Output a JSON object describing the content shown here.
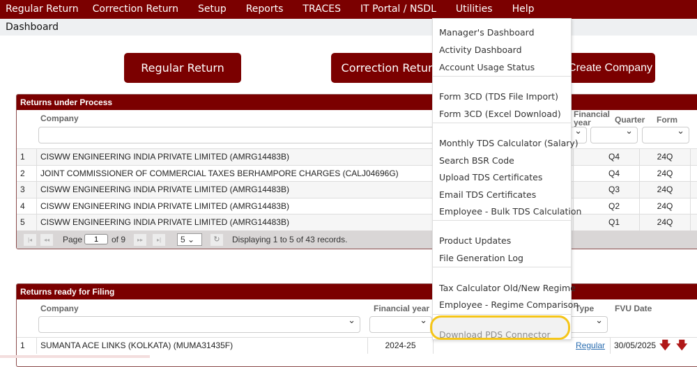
{
  "menubar": [
    "Regular Return",
    "Correction Return",
    "Setup",
    "Reports",
    "TRACES",
    "IT Portal / NSDL",
    "Utilities",
    "Help"
  ],
  "breadcrumb": "Dashboard",
  "buttons": {
    "regular": "Regular Return",
    "correction": "Correction Return",
    "create": "Create Company"
  },
  "process": {
    "title": "Returns under Process",
    "headers": {
      "company": "Company",
      "year": "Financial year",
      "quarter": "Quarter",
      "form": "Form"
    },
    "rows": [
      {
        "n": "1",
        "company": "CISWW ENGINEERING INDIA PRIVATE LIMITED (AMRG14483B)",
        "quarter": "Q4",
        "form": "24Q"
      },
      {
        "n": "2",
        "company": "JOINT COMMISSIONER OF COMMERCIAL TAXES BERHAMPORE CHARGES (CALJ04696G)",
        "quarter": "Q4",
        "form": "24Q"
      },
      {
        "n": "3",
        "company": "CISWW ENGINEERING INDIA PRIVATE LIMITED (AMRG14483B)",
        "quarter": "Q3",
        "form": "24Q"
      },
      {
        "n": "4",
        "company": "CISWW ENGINEERING INDIA PRIVATE LIMITED (AMRG14483B)",
        "quarter": "Q2",
        "form": "24Q"
      },
      {
        "n": "5",
        "company": "CISWW ENGINEERING INDIA PRIVATE LIMITED (AMRG14483B)",
        "quarter": "Q1",
        "form": "24Q"
      }
    ],
    "pager": {
      "page_label": "Page",
      "page": "1",
      "of": "of 9",
      "page_size": "5",
      "status": "Displaying 1 to 5 of 43 records."
    }
  },
  "filing": {
    "title": "Returns ready for Filing",
    "headers": {
      "company": "Company",
      "year": "Financial year",
      "type": "Type",
      "fvu": "FVU Date"
    },
    "rows": [
      {
        "n": "1",
        "company": "SUMANTA ACE LINKS (KOLKATA) (MUMA31435F)",
        "year": "2024-25",
        "type": "Regular",
        "fvu": "30/05/2025"
      }
    ]
  },
  "utilities_menu": {
    "groups": [
      [
        "Manager's Dashboard",
        "Activity Dashboard",
        "Account Usage Status"
      ],
      [
        "Form 3CD (TDS File Import)",
        "Form 3CD (Excel Download)"
      ],
      [
        "Monthly TDS Calculator (Salary)",
        "Search BSR Code",
        "Upload TDS Certificates",
        "Email TDS Certificates",
        "Employee - Bulk TDS Calculation"
      ],
      [
        "Product Updates",
        "File Generation Log"
      ],
      [
        "Tax Calculator Old/New Regime",
        "Employee - Regime Comparison"
      ],
      [
        "Download PDS Connector"
      ]
    ],
    "highlighted": "Download PDS Connector",
    "highlight_color": "#f5c518"
  },
  "colors": {
    "brand": "#7b0000"
  }
}
